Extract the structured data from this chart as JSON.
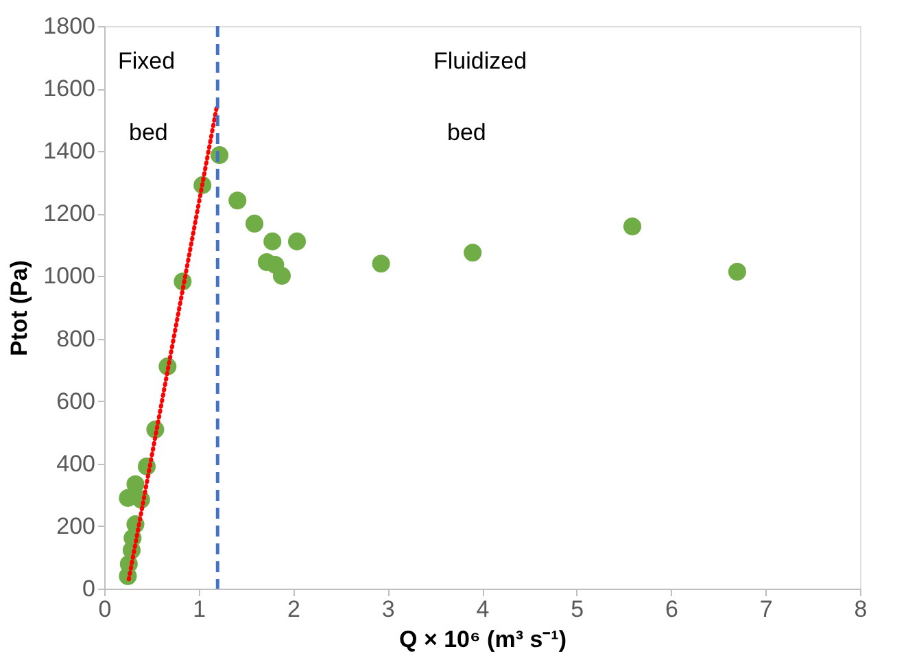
{
  "chart_data": {
    "type": "scatter",
    "xlabel": "Q × 10⁶ (m³ s⁻¹)",
    "ylabel": "Ptot (Pa)",
    "xlim": [
      0,
      8
    ],
    "xticks": [
      0,
      1,
      2,
      3,
      4,
      5,
      6,
      7,
      8
    ],
    "ylim": [
      0,
      1800
    ],
    "yticks": [
      0,
      200,
      400,
      600,
      800,
      1000,
      1200,
      1400,
      1600,
      1800
    ],
    "grid": false,
    "marker": "circle",
    "series": [
      {
        "color": "#70ad47",
        "x": [
          0.25,
          0.26,
          0.29,
          0.3,
          0.33,
          0.39,
          0.25,
          0.33,
          0.45,
          0.54,
          0.67,
          0.83,
          1.04,
          1.22,
          1.41,
          1.59,
          1.78,
          2.04,
          1.72,
          1.81,
          1.88,
          2.93,
          3.9,
          5.59,
          6.7
        ],
        "values": [
          40,
          79,
          123,
          162,
          206,
          285,
          290,
          334,
          391,
          509,
          711,
          983,
          1291,
          1387,
          1242,
          1168,
          1111,
          1111,
          1045,
          1036,
          1001,
          1040,
          1075,
          1159,
          1014
        ]
      },
      {
        "type": "line",
        "color": "#ff0000",
        "line_style": "dotted",
        "marker": "none",
        "x": [
          0.26,
          1.19
        ],
        "values": [
          30,
          1540
        ]
      }
    ],
    "ref_lines": [
      {
        "axis": "x",
        "value": 1.2,
        "color": "#4472c4",
        "line_style": "dashed"
      }
    ],
    "annotations": [
      "Fixed",
      "bed",
      "Fluidized",
      "bed"
    ]
  }
}
